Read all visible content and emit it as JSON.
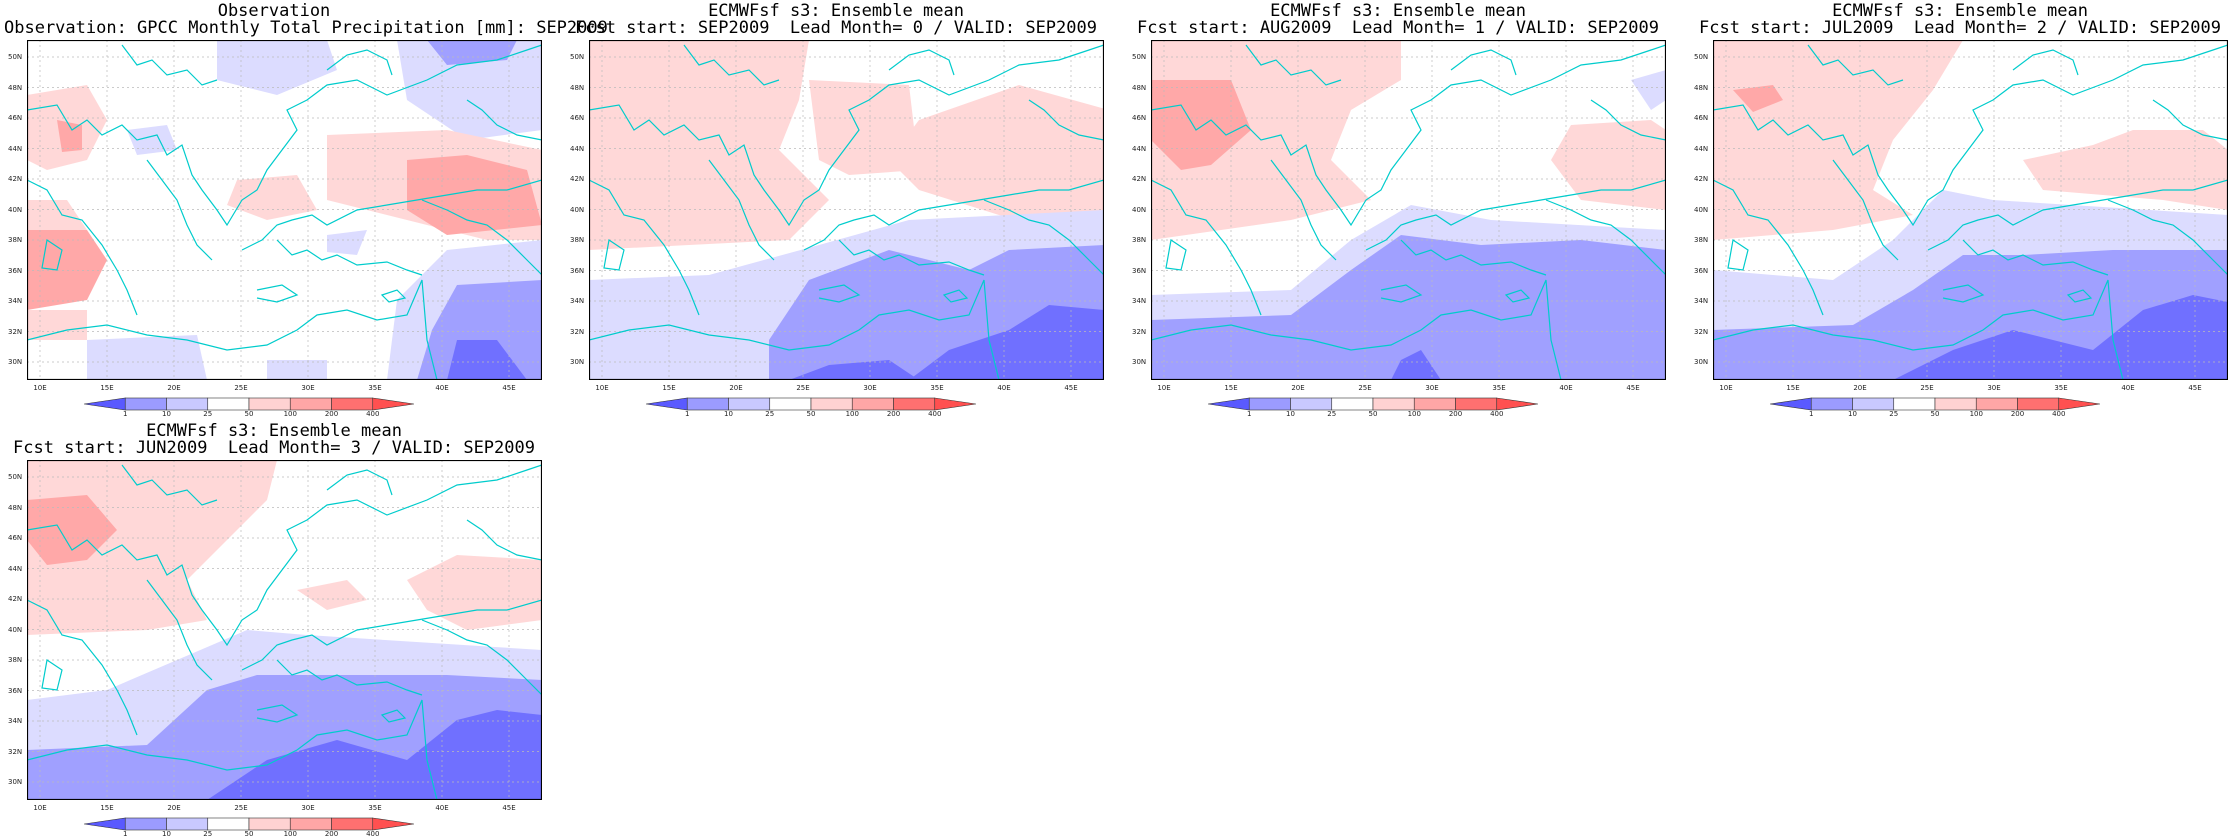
{
  "panels": [
    {
      "id": "obs",
      "title_line1": "Observation",
      "title_line2": "Observation: GPCC Monthly Total Precipitation [mm]: SEP2009"
    },
    {
      "id": "lead0",
      "title_line1": "ECMWFsf s3: Ensemble mean",
      "title_line2": "Fcst start: SEP2009  Lead Month= 0 / VALID: SEP2009"
    },
    {
      "id": "lead1",
      "title_line1": "ECMWFsf s3: Ensemble mean",
      "title_line2": "Fcst start: AUG2009  Lead Month= 1 / VALID: SEP2009"
    },
    {
      "id": "lead2",
      "title_line1": "ECMWFsf s3: Ensemble mean",
      "title_line2": "Fcst start: JUL2009  Lead Month= 2 / VALID: SEP2009"
    },
    {
      "id": "lead3",
      "title_line1": "ECMWFsf s3: Ensemble mean",
      "title_line2": "Fcst start: JUN2009  Lead Month= 3 / VALID: SEP2009"
    }
  ],
  "axes": {
    "lat_labels": [
      "50N",
      "48N",
      "46N",
      "44N",
      "42N",
      "40N",
      "38N",
      "36N",
      "34N",
      "32N",
      "30N"
    ],
    "lon_labels": [
      "10E",
      "15E",
      "20E",
      "25E",
      "30E",
      "35E",
      "40E",
      "45E"
    ]
  },
  "colorbar": {
    "levels": [
      "1",
      "10",
      "25",
      "50",
      "100",
      "200",
      "400"
    ],
    "colors": [
      "#5a5aff",
      "#9b9bff",
      "#c9c9ff",
      "#ffffff",
      "#ffd2d2",
      "#ffa6a6",
      "#ff7070",
      "#ff5050"
    ]
  },
  "map_colors": {
    "coast": "#00cccc",
    "blue_light": "#dcdcff",
    "blue_mid": "#a0a0ff",
    "blue_dark": "#7070ff",
    "red_light": "#ffd8d8",
    "red_mid": "#ffa8a8",
    "red_dark": "#ff8080",
    "grid": "#bbbbbb"
  }
}
